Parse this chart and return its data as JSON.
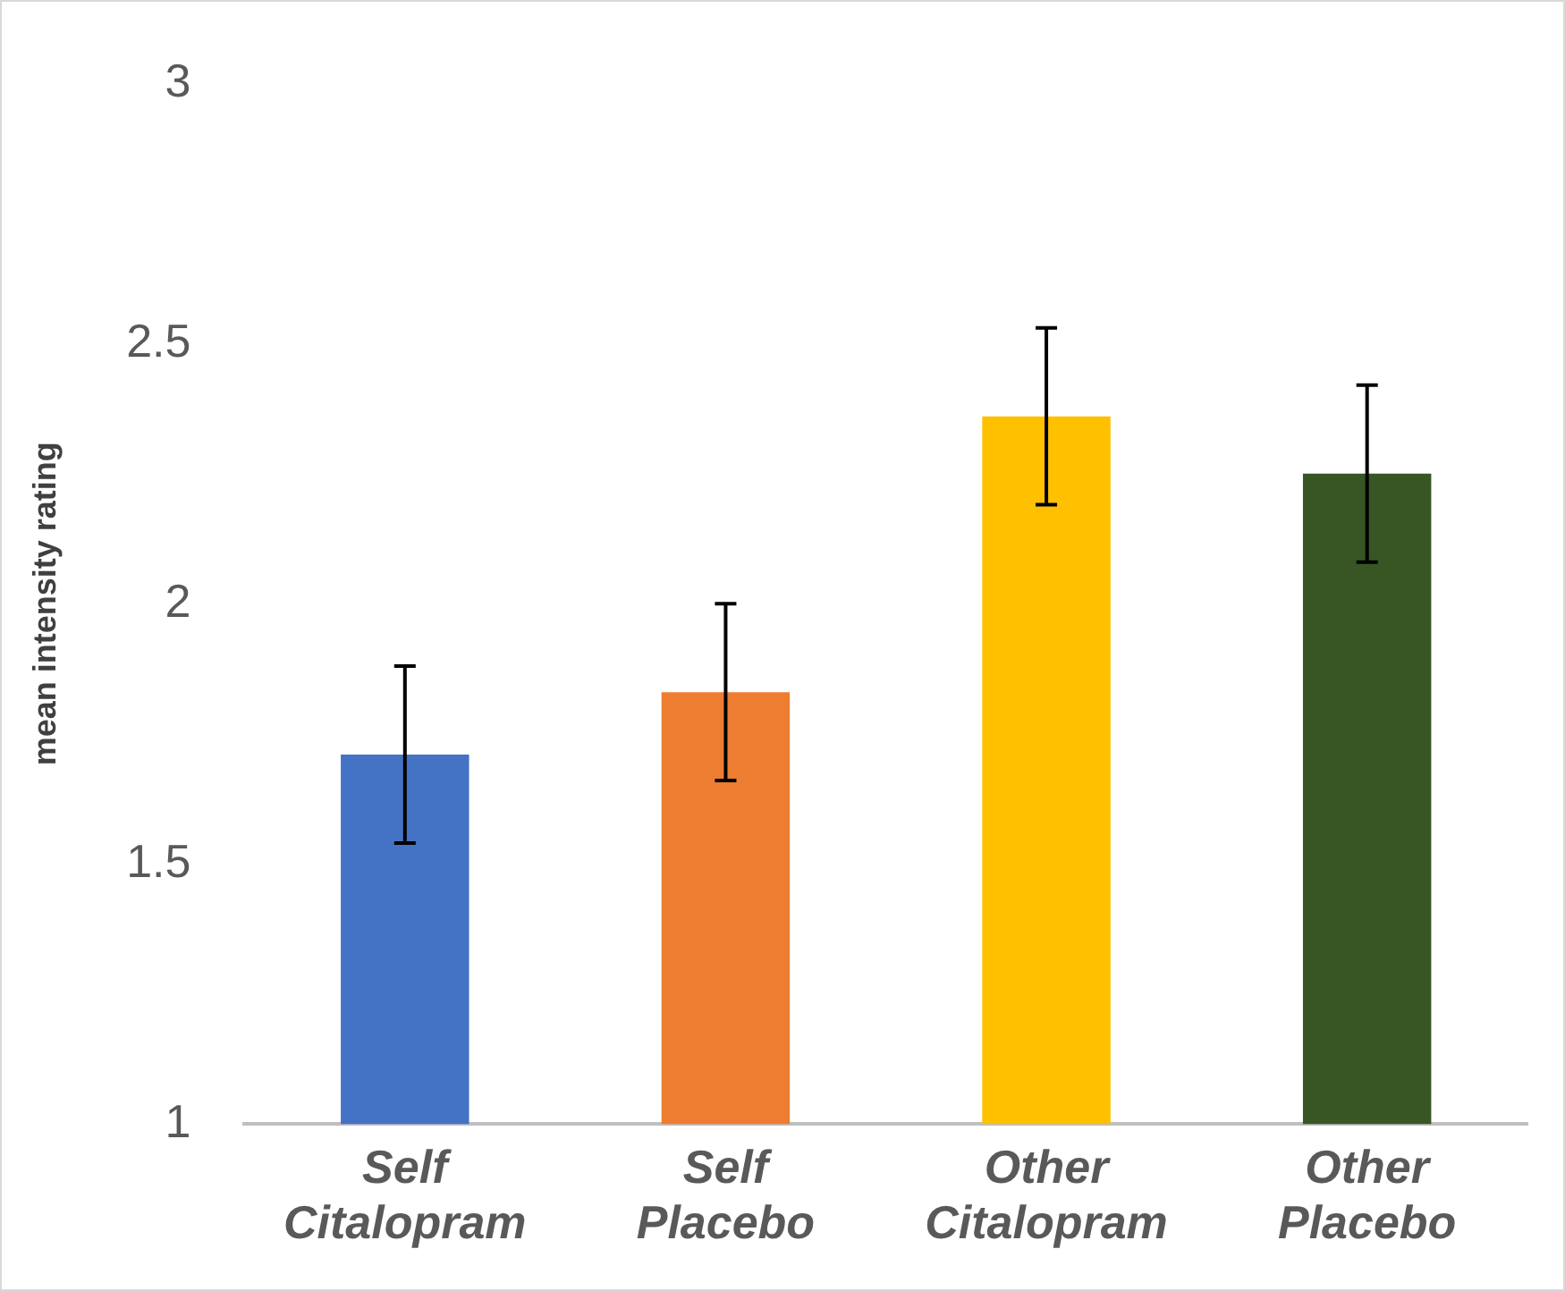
{
  "chart_data": {
    "type": "bar",
    "ylabel": "mean intensity rating",
    "categories": [
      "Self Citalopram",
      "Self Placebo",
      "Other Citalopram",
      "Other Placebo"
    ],
    "values": [
      1.71,
      1.83,
      2.36,
      2.25
    ],
    "colors": [
      "#4472c4",
      "#ed7d31",
      "#ffc000",
      "#375623"
    ],
    "errors": [
      0.17,
      0.17,
      0.17,
      0.17
    ],
    "ylim": [
      1,
      3
    ],
    "yticks": [
      1,
      1.5,
      2,
      2.5,
      3
    ],
    "grid": false,
    "legend": false
  }
}
